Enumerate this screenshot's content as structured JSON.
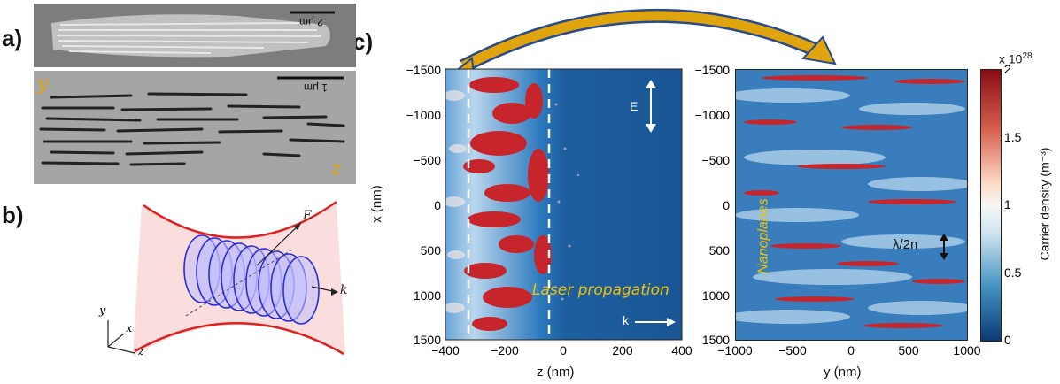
{
  "panels": {
    "a": "a)",
    "b": "b)",
    "c": "c)"
  },
  "sem_top": {
    "scale_label": "2 μm"
  },
  "sem_bottom": {
    "scale_label": "1 μm",
    "axis_y": "y",
    "axis_z": "z"
  },
  "schematic": {
    "label_E": "E",
    "label_k": "k",
    "axis_x": "x",
    "axis_y": "y",
    "axis_z": "z"
  },
  "left_map": {
    "xlabel": "z (nm)",
    "ylabel": "x (nm)",
    "xticks": [
      "−400",
      "−200",
      "0",
      "200",
      "400"
    ],
    "yticks": [
      "−1500",
      "−1000",
      "−500",
      "0",
      "500",
      "1000",
      "1500"
    ],
    "annotation_E": "E",
    "annotation_k": "k",
    "annotation_laser": "Laser propagation"
  },
  "right_map": {
    "xlabel": "y (nm)",
    "xticks": [
      "−1000",
      "−500",
      "0",
      "500",
      "1000"
    ],
    "yticks": [
      "−1500",
      "−1000",
      "−500",
      "0",
      "500",
      "1000",
      "1500"
    ],
    "annotation_period": "λ/2n",
    "annotation_nanoplanes": "Nanoplanes"
  },
  "colorbar": {
    "exponent": "x 10",
    "exponent_power": "28",
    "label": "Carrier density (m⁻³)",
    "ticks": [
      "2",
      "1.5",
      "1",
      "0.5",
      "0"
    ],
    "colors": {
      "high": "#a50f15",
      "mid": "#f7f7f7",
      "low": "#08306b"
    }
  },
  "colors": {
    "arrow": "#e0a40f",
    "arrow_outline": "#2a4a8a",
    "beam": "#e21f1f",
    "ellipse": "#2a2adf",
    "annotation": "#f2c200"
  }
}
